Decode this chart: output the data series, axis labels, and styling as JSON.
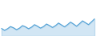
{
  "title": "",
  "line_color": "#4f9fd4",
  "background_color": "#ffffff",
  "figsize": [
    1.2,
    0.45
  ],
  "dpi": 100,
  "values": [
    100.0,
    97.0,
    99.5,
    103.0,
    101.0,
    98.0,
    100.5,
    104.5,
    102.5,
    99.5,
    102.0,
    106.0,
    103.5,
    100.5,
    103.0,
    107.0,
    104.5,
    101.5,
    104.5,
    108.5,
    105.5,
    102.5,
    106.0,
    110.0,
    107.0,
    103.5,
    107.5,
    112.0,
    109.0,
    106.0,
    110.5,
    115.0
  ],
  "linewidth": 0.8,
  "ylim": [
    88,
    145
  ]
}
